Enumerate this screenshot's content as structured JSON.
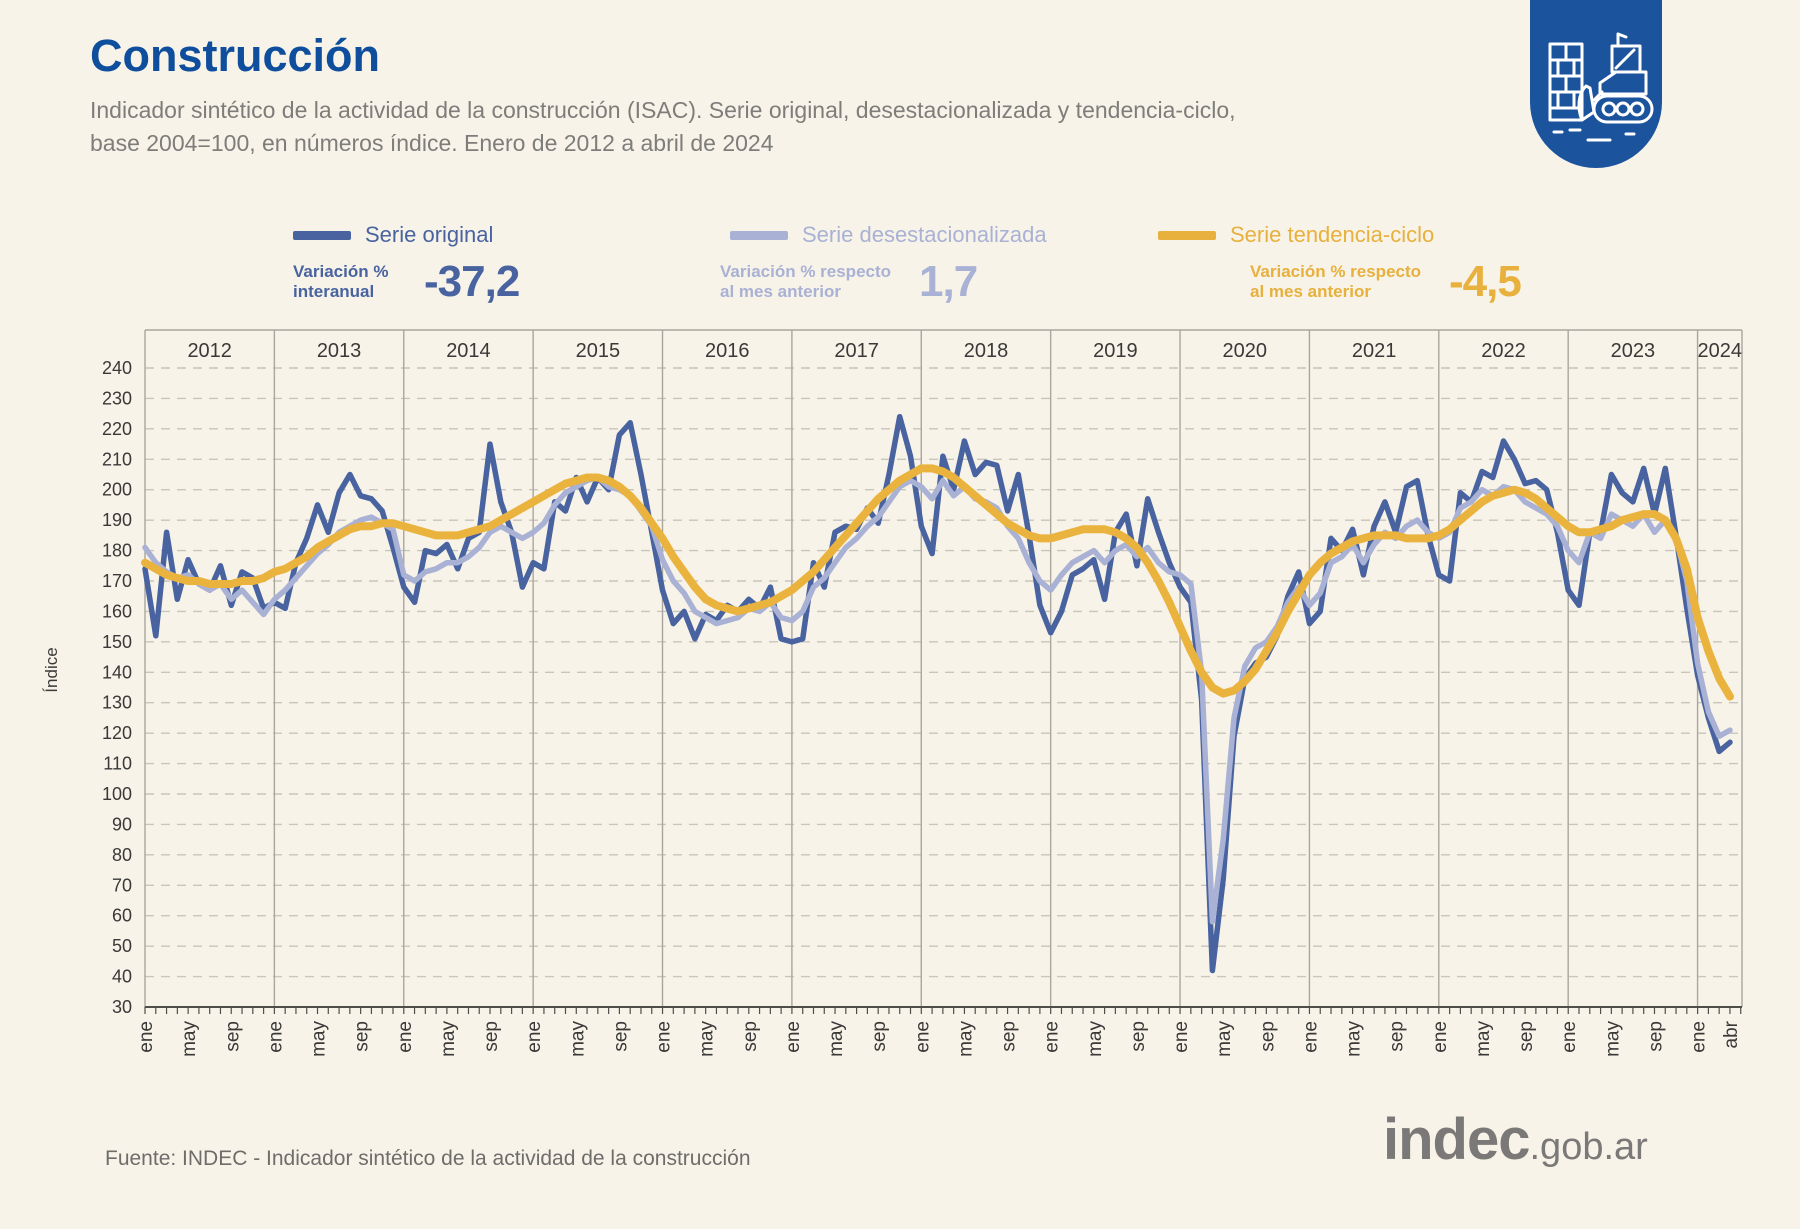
{
  "page": {
    "background": "#f7f3e9",
    "accent_blue": "#0e4e9c",
    "badge_blue": "#1b539d"
  },
  "header": {
    "title": "Construcción",
    "subtitle_line1": "Indicador sintético de la actividad de la construcción (ISAC). Serie original, desestacionalizada y tendencia-ciclo,",
    "subtitle_line2": "base 2004=100, en números índice. Enero de 2012 a abril de 2024"
  },
  "badge": {
    "icon": "construction-machinery-icon"
  },
  "legend": [
    {
      "label": "Serie original",
      "color": "#48639f",
      "caption_line1": "Variación %",
      "caption_line2": "interanual",
      "value": "-37,2"
    },
    {
      "label": "Serie desestacionalizada",
      "color": "#a9b1d4",
      "caption_line1": "Variación % respecto",
      "caption_line2": "al mes anterior",
      "value": "1,7"
    },
    {
      "label": "Serie tendencia-ciclo",
      "color": "#e8b03c",
      "caption_line1": "Variación % respecto",
      "caption_line2": "al mes anterior",
      "value": "-4,5"
    }
  ],
  "chart_data": {
    "type": "line",
    "title": "",
    "xlabel": "",
    "ylabel": "Índice",
    "ylim": [
      30,
      240
    ],
    "ytick_step": 10,
    "grid": "horizontal-dashed",
    "legend_position": "top",
    "years": [
      2012,
      2013,
      2014,
      2015,
      2016,
      2017,
      2018,
      2019,
      2020,
      2021,
      2022,
      2023,
      2024
    ],
    "x_range": "ene 2012 - abr 2024",
    "x_ticks": [
      {
        "i": 0,
        "label": "ene"
      },
      {
        "i": 4,
        "label": "may"
      },
      {
        "i": 8,
        "label": "sep"
      },
      {
        "i": 12,
        "label": "ene"
      },
      {
        "i": 16,
        "label": "may"
      },
      {
        "i": 20,
        "label": "sep"
      },
      {
        "i": 24,
        "label": "ene"
      },
      {
        "i": 28,
        "label": "may"
      },
      {
        "i": 32,
        "label": "sep"
      },
      {
        "i": 36,
        "label": "ene"
      },
      {
        "i": 40,
        "label": "may"
      },
      {
        "i": 44,
        "label": "sep"
      },
      {
        "i": 48,
        "label": "ene"
      },
      {
        "i": 52,
        "label": "may"
      },
      {
        "i": 56,
        "label": "sep"
      },
      {
        "i": 60,
        "label": "ene"
      },
      {
        "i": 64,
        "label": "may"
      },
      {
        "i": 68,
        "label": "sep"
      },
      {
        "i": 72,
        "label": "ene"
      },
      {
        "i": 76,
        "label": "may"
      },
      {
        "i": 80,
        "label": "sep"
      },
      {
        "i": 84,
        "label": "ene"
      },
      {
        "i": 88,
        "label": "may"
      },
      {
        "i": 92,
        "label": "sep"
      },
      {
        "i": 96,
        "label": "ene"
      },
      {
        "i": 100,
        "label": "may"
      },
      {
        "i": 104,
        "label": "sep"
      },
      {
        "i": 108,
        "label": "ene"
      },
      {
        "i": 112,
        "label": "may"
      },
      {
        "i": 116,
        "label": "sep"
      },
      {
        "i": 120,
        "label": "ene"
      },
      {
        "i": 124,
        "label": "may"
      },
      {
        "i": 128,
        "label": "sep"
      },
      {
        "i": 132,
        "label": "ene"
      },
      {
        "i": 136,
        "label": "may"
      },
      {
        "i": 140,
        "label": "sep"
      },
      {
        "i": 144,
        "label": "ene"
      },
      {
        "i": 147,
        "label": "abr"
      }
    ],
    "series": [
      {
        "name": "Serie original",
        "color": "#48639f",
        "width": 5.5,
        "values": [
          174,
          152,
          186,
          164,
          177,
          169,
          167,
          175,
          162,
          173,
          171,
          161,
          163,
          161,
          176,
          184,
          195,
          186,
          199,
          205,
          198,
          197,
          193,
          181,
          168,
          163,
          180,
          179,
          182,
          174,
          184,
          186,
          215,
          196,
          186,
          168,
          176,
          174,
          196,
          193,
          204,
          196,
          204,
          200,
          218,
          222,
          205,
          186,
          167,
          156,
          160,
          151,
          159,
          157,
          162,
          160,
          164,
          161,
          168,
          151,
          150,
          151,
          176,
          168,
          186,
          188,
          187,
          194,
          189,
          205,
          224,
          211,
          188,
          179,
          211,
          200,
          216,
          205,
          209,
          208,
          193,
          205,
          185,
          162,
          153,
          160,
          172,
          174,
          177,
          164,
          186,
          192,
          175,
          197,
          186,
          176,
          168,
          163,
          131,
          42,
          72,
          119,
          138,
          143,
          145,
          152,
          165,
          173,
          156,
          160,
          184,
          180,
          187,
          172,
          188,
          196,
          186,
          201,
          203,
          185,
          172,
          170,
          199,
          196,
          206,
          204,
          216,
          210,
          202,
          203,
          200,
          186,
          167,
          162,
          186,
          186,
          205,
          199,
          196,
          207,
          192,
          207,
          185,
          161,
          139,
          125,
          114,
          117
        ]
      },
      {
        "name": "Serie desestacionalizada",
        "color": "#a9b1d4",
        "width": 5.5,
        "values": [
          181,
          176,
          173,
          171,
          172,
          169,
          167,
          169,
          164,
          167,
          163,
          159,
          164,
          167,
          171,
          175,
          179,
          182,
          186,
          188,
          190,
          191,
          189,
          187,
          172,
          170,
          173,
          174,
          176,
          176,
          178,
          181,
          186,
          188,
          186,
          184,
          186,
          189,
          195,
          199,
          201,
          203,
          204,
          201,
          200,
          198,
          193,
          188,
          177,
          170,
          166,
          160,
          158,
          156,
          157,
          158,
          161,
          160,
          163,
          158,
          157,
          160,
          168,
          171,
          176,
          181,
          184,
          188,
          191,
          196,
          201,
          203,
          201,
          197,
          203,
          198,
          201,
          197,
          196,
          194,
          188,
          184,
          176,
          170,
          167,
          172,
          176,
          178,
          180,
          176,
          180,
          182,
          178,
          181,
          176,
          173,
          172,
          169,
          140,
          58,
          85,
          125,
          142,
          148,
          150,
          155,
          163,
          168,
          162,
          166,
          176,
          178,
          182,
          176,
          182,
          186,
          184,
          188,
          190,
          186,
          184,
          186,
          194,
          196,
          200,
          198,
          201,
          200,
          196,
          194,
          192,
          188,
          180,
          176,
          186,
          184,
          192,
          190,
          188,
          192,
          186,
          190,
          184,
          170,
          143,
          127,
          119,
          121
        ]
      },
      {
        "name": "Serie tendencia-ciclo",
        "color": "#eab33e",
        "width": 8,
        "values": [
          176,
          174,
          172,
          171,
          170,
          170,
          169,
          169,
          169,
          170,
          170,
          171,
          173,
          174,
          176,
          178,
          181,
          183,
          185,
          187,
          188,
          188,
          189,
          189,
          188,
          187,
          186,
          185,
          185,
          185,
          186,
          187,
          188,
          190,
          192,
          194,
          196,
          198,
          200,
          202,
          203,
          204,
          204,
          203,
          201,
          198,
          194,
          189,
          184,
          178,
          173,
          168,
          164,
          162,
          161,
          160,
          161,
          162,
          163,
          165,
          167,
          170,
          173,
          177,
          181,
          185,
          189,
          193,
          197,
          200,
          203,
          205,
          207,
          207,
          206,
          204,
          201,
          198,
          195,
          192,
          189,
          187,
          185,
          184,
          184,
          185,
          186,
          187,
          187,
          187,
          186,
          184,
          181,
          176,
          170,
          163,
          155,
          147,
          140,
          135,
          133,
          134,
          137,
          141,
          147,
          153,
          160,
          166,
          172,
          176,
          179,
          181,
          183,
          184,
          185,
          185,
          185,
          184,
          184,
          184,
          185,
          187,
          190,
          193,
          196,
          198,
          199,
          200,
          199,
          197,
          194,
          191,
          188,
          186,
          186,
          187,
          188,
          190,
          191,
          192,
          192,
          190,
          184,
          174,
          158,
          147,
          138,
          132
        ]
      }
    ]
  },
  "footer": {
    "source": "Fuente: INDEC - Indicador sintético de la actividad de la construcción",
    "logo_main": "indec",
    "logo_suffix": ".gob.ar"
  }
}
